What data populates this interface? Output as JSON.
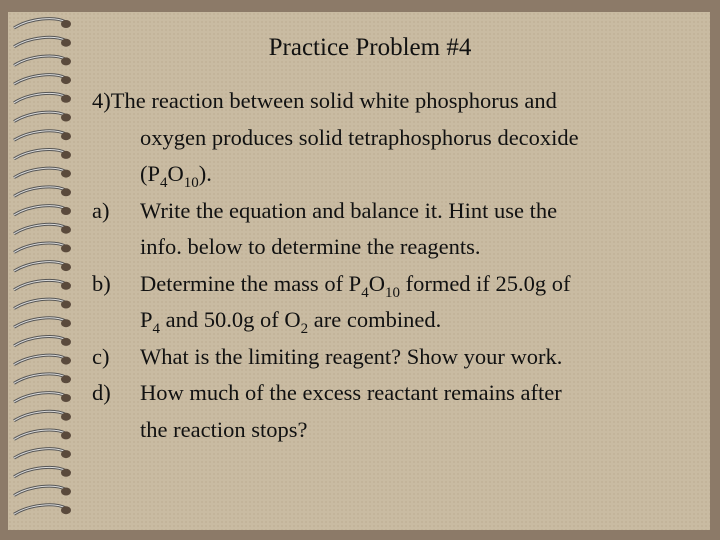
{
  "title": "Practice Problem #4",
  "problem": {
    "lines": [
      [
        "4)The reaction between solid white phosphorus and"
      ],
      [
        "oxygen produces solid tetraphosphorus decoxide"
      ],
      [
        "(P",
        {
          "sub": "4"
        },
        "O",
        {
          "sub": "10"
        },
        ")."
      ]
    ]
  },
  "parts": [
    {
      "label": "a)",
      "lines": [
        [
          "Write the equation and balance it. Hint use the"
        ],
        [
          "info. below to determine the reagents."
        ]
      ]
    },
    {
      "label": "b)",
      "lines": [
        [
          "Determine the mass of P",
          {
            "sub": "4"
          },
          "O",
          {
            "sub": "10"
          },
          " formed if 25.0g of"
        ],
        [
          "P",
          {
            "sub": "4"
          },
          " and 50.0g of O",
          {
            "sub": "2"
          },
          " are combined."
        ]
      ]
    },
    {
      "label": "c)",
      "lines": [
        [
          "What is the limiting reagent? Show your work."
        ]
      ]
    },
    {
      "label": "d)",
      "lines": [
        [
          "How much of the excess reactant remains after"
        ],
        [
          "the reaction stops?"
        ]
      ]
    }
  ]
}
